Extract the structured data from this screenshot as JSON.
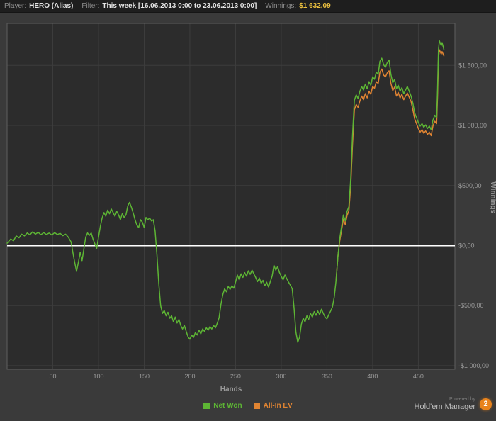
{
  "header": {
    "player_label": "Player:",
    "player_value": "HERO (Alias)",
    "filter_label": "Filter:",
    "filter_value": "This week [16.06.2013 0:00 to 23.06.2013 0:00]",
    "winnings_label": "Winnings:",
    "winnings_value": "$1 632,09",
    "winnings_color": "#eec23f"
  },
  "legend": {
    "items": [
      {
        "label": "Net Won",
        "color": "#5db534"
      },
      {
        "label": "All-In EV",
        "color": "#e08432"
      }
    ]
  },
  "footer": {
    "powered_by": "Powered by",
    "brand": "Hold'em Manager",
    "badge": "2",
    "badge_color": "#e8831c"
  },
  "chart_data": {
    "type": "line",
    "title": "",
    "xlabel": "Hands",
    "ylabel": "Winnings",
    "x_range": [
      0,
      490
    ],
    "y_range": [
      -1030,
      1850
    ],
    "grid": true,
    "legend_position": "bottom",
    "x_ticks": [
      {
        "value": 50,
        "label": "50"
      },
      {
        "value": 100,
        "label": "100"
      },
      {
        "value": 150,
        "label": "150"
      },
      {
        "value": 200,
        "label": "200"
      },
      {
        "value": 250,
        "label": "250"
      },
      {
        "value": 300,
        "label": "300"
      },
      {
        "value": 350,
        "label": "350"
      },
      {
        "value": 400,
        "label": "400"
      },
      {
        "value": 450,
        "label": "450"
      }
    ],
    "y_ticks": [
      {
        "value": 1500,
        "label": "$1 500,00"
      },
      {
        "value": 1000,
        "label": "$1 000,00"
      },
      {
        "value": 500,
        "label": "$500,00"
      },
      {
        "value": 0,
        "label": "$0,00"
      },
      {
        "value": -500,
        "label": "-$500,00"
      },
      {
        "value": -1000,
        "label": "-$1 000,00"
      }
    ],
    "zero_line_value": 0,
    "colors": {
      "plot_bg": "#2c2c2c",
      "grid": "#3d3d3d",
      "border": "#5f5f5f",
      "zero_line": "#ffffff",
      "tick_text": "#9a9a9a"
    },
    "series": [
      {
        "name": "Net Won",
        "color": "#5db534",
        "points": [
          [
            0,
            20
          ],
          [
            4,
            55
          ],
          [
            7,
            40
          ],
          [
            10,
            80
          ],
          [
            13,
            65
          ],
          [
            16,
            95
          ],
          [
            19,
            80
          ],
          [
            22,
            105
          ],
          [
            25,
            90
          ],
          [
            28,
            115
          ],
          [
            31,
            95
          ],
          [
            34,
            110
          ],
          [
            37,
            90
          ],
          [
            40,
            108
          ],
          [
            43,
            92
          ],
          [
            46,
            104
          ],
          [
            49,
            88
          ],
          [
            52,
            108
          ],
          [
            55,
            92
          ],
          [
            58,
            102
          ],
          [
            61,
            82
          ],
          [
            64,
            95
          ],
          [
            67,
            70
          ],
          [
            70,
            30
          ],
          [
            72,
            -60
          ],
          [
            74,
            -140
          ],
          [
            76,
            -215
          ],
          [
            78,
            -140
          ],
          [
            80,
            -55
          ],
          [
            82,
            -125
          ],
          [
            84,
            -30
          ],
          [
            86,
            70
          ],
          [
            88,
            105
          ],
          [
            90,
            85
          ],
          [
            92,
            105
          ],
          [
            94,
            55
          ],
          [
            96,
            15
          ],
          [
            98,
            -25
          ],
          [
            100,
            70
          ],
          [
            102,
            160
          ],
          [
            104,
            230
          ],
          [
            106,
            275
          ],
          [
            108,
            245
          ],
          [
            110,
            295
          ],
          [
            112,
            265
          ],
          [
            114,
            305
          ],
          [
            116,
            275
          ],
          [
            118,
            245
          ],
          [
            120,
            285
          ],
          [
            122,
            255
          ],
          [
            124,
            215
          ],
          [
            126,
            265
          ],
          [
            128,
            235
          ],
          [
            130,
            255
          ],
          [
            132,
            330
          ],
          [
            134,
            360
          ],
          [
            136,
            320
          ],
          [
            138,
            270
          ],
          [
            140,
            215
          ],
          [
            142,
            170
          ],
          [
            144,
            150
          ],
          [
            146,
            215
          ],
          [
            148,
            195
          ],
          [
            150,
            150
          ],
          [
            152,
            235
          ],
          [
            154,
            215
          ],
          [
            156,
            228
          ],
          [
            158,
            205
          ],
          [
            160,
            215
          ],
          [
            162,
            120
          ],
          [
            164,
            -80
          ],
          [
            166,
            -320
          ],
          [
            168,
            -500
          ],
          [
            170,
            -565
          ],
          [
            172,
            -540
          ],
          [
            174,
            -585
          ],
          [
            176,
            -555
          ],
          [
            178,
            -605
          ],
          [
            180,
            -585
          ],
          [
            182,
            -635
          ],
          [
            184,
            -595
          ],
          [
            186,
            -645
          ],
          [
            188,
            -615
          ],
          [
            190,
            -665
          ],
          [
            192,
            -695
          ],
          [
            194,
            -665
          ],
          [
            196,
            -715
          ],
          [
            198,
            -760
          ],
          [
            200,
            -780
          ],
          [
            202,
            -745
          ],
          [
            204,
            -765
          ],
          [
            206,
            -725
          ],
          [
            208,
            -745
          ],
          [
            210,
            -705
          ],
          [
            212,
            -735
          ],
          [
            214,
            -695
          ],
          [
            216,
            -715
          ],
          [
            218,
            -685
          ],
          [
            220,
            -705
          ],
          [
            222,
            -675
          ],
          [
            224,
            -695
          ],
          [
            226,
            -665
          ],
          [
            228,
            -685
          ],
          [
            230,
            -645
          ],
          [
            232,
            -600
          ],
          [
            234,
            -490
          ],
          [
            236,
            -410
          ],
          [
            238,
            -360
          ],
          [
            240,
            -385
          ],
          [
            242,
            -340
          ],
          [
            244,
            -365
          ],
          [
            246,
            -335
          ],
          [
            248,
            -355
          ],
          [
            250,
            -305
          ],
          [
            252,
            -245
          ],
          [
            254,
            -285
          ],
          [
            256,
            -235
          ],
          [
            258,
            -265
          ],
          [
            260,
            -225
          ],
          [
            262,
            -255
          ],
          [
            264,
            -210
          ],
          [
            266,
            -240
          ],
          [
            268,
            -205
          ],
          [
            270,
            -235
          ],
          [
            272,
            -265
          ],
          [
            274,
            -300
          ],
          [
            276,
            -270
          ],
          [
            278,
            -315
          ],
          [
            280,
            -290
          ],
          [
            282,
            -335
          ],
          [
            284,
            -305
          ],
          [
            286,
            -345
          ],
          [
            288,
            -300
          ],
          [
            290,
            -255
          ],
          [
            292,
            -165
          ],
          [
            294,
            -205
          ],
          [
            296,
            -175
          ],
          [
            298,
            -225
          ],
          [
            300,
            -255
          ],
          [
            302,
            -285
          ],
          [
            304,
            -245
          ],
          [
            306,
            -275
          ],
          [
            308,
            -305
          ],
          [
            310,
            -330
          ],
          [
            312,
            -360
          ],
          [
            314,
            -520
          ],
          [
            316,
            -720
          ],
          [
            318,
            -805
          ],
          [
            320,
            -765
          ],
          [
            322,
            -655
          ],
          [
            324,
            -605
          ],
          [
            326,
            -635
          ],
          [
            328,
            -585
          ],
          [
            330,
            -615
          ],
          [
            332,
            -565
          ],
          [
            334,
            -595
          ],
          [
            336,
            -550
          ],
          [
            338,
            -580
          ],
          [
            340,
            -545
          ],
          [
            342,
            -575
          ],
          [
            344,
            -530
          ],
          [
            346,
            -565
          ],
          [
            348,
            -595
          ],
          [
            350,
            -610
          ],
          [
            352,
            -575
          ],
          [
            354,
            -545
          ],
          [
            356,
            -510
          ],
          [
            358,
            -430
          ],
          [
            360,
            -290
          ],
          [
            362,
            -90
          ],
          [
            364,
            60
          ],
          [
            366,
            160
          ],
          [
            368,
            255
          ],
          [
            370,
            205
          ],
          [
            372,
            285
          ],
          [
            374,
            325
          ],
          [
            376,
            560
          ],
          [
            378,
            920
          ],
          [
            380,
            1210
          ],
          [
            382,
            1255
          ],
          [
            384,
            1225
          ],
          [
            386,
            1285
          ],
          [
            388,
            1325
          ],
          [
            390,
            1295
          ],
          [
            392,
            1345
          ],
          [
            394,
            1305
          ],
          [
            396,
            1365
          ],
          [
            398,
            1335
          ],
          [
            400,
            1405
          ],
          [
            402,
            1385
          ],
          [
            404,
            1445
          ],
          [
            406,
            1425
          ],
          [
            408,
            1535
          ],
          [
            410,
            1560
          ],
          [
            412,
            1505
          ],
          [
            414,
            1485
          ],
          [
            416,
            1525
          ],
          [
            418,
            1545
          ],
          [
            420,
            1425
          ],
          [
            422,
            1355
          ],
          [
            424,
            1385
          ],
          [
            426,
            1305
          ],
          [
            428,
            1335
          ],
          [
            430,
            1285
          ],
          [
            432,
            1315
          ],
          [
            434,
            1265
          ],
          [
            436,
            1295
          ],
          [
            438,
            1325
          ],
          [
            440,
            1285
          ],
          [
            442,
            1245
          ],
          [
            444,
            1185
          ],
          [
            446,
            1105
          ],
          [
            448,
            1065
          ],
          [
            450,
            1025
          ],
          [
            452,
            995
          ],
          [
            454,
            1015
          ],
          [
            456,
            985
          ],
          [
            458,
            1005
          ],
          [
            460,
            975
          ],
          [
            462,
            995
          ],
          [
            464,
            965
          ],
          [
            466,
            1045
          ],
          [
            468,
            1085
          ],
          [
            470,
            1065
          ],
          [
            471,
            1300
          ],
          [
            472,
            1630
          ],
          [
            473,
            1705
          ],
          [
            475,
            1665
          ],
          [
            476,
            1690
          ],
          [
            478,
            1632
          ]
        ]
      },
      {
        "name": "All-In EV",
        "color": "#e08432",
        "points": [
          [
            360,
            -290
          ],
          [
            362,
            -90
          ],
          [
            364,
            40
          ],
          [
            366,
            130
          ],
          [
            368,
            220
          ],
          [
            370,
            175
          ],
          [
            372,
            250
          ],
          [
            374,
            290
          ],
          [
            376,
            500
          ],
          [
            378,
            840
          ],
          [
            380,
            1130
          ],
          [
            382,
            1175
          ],
          [
            384,
            1150
          ],
          [
            386,
            1205
          ],
          [
            388,
            1245
          ],
          [
            390,
            1215
          ],
          [
            392,
            1265
          ],
          [
            394,
            1230
          ],
          [
            396,
            1285
          ],
          [
            398,
            1260
          ],
          [
            400,
            1325
          ],
          [
            402,
            1310
          ],
          [
            404,
            1365
          ],
          [
            406,
            1350
          ],
          [
            408,
            1445
          ],
          [
            410,
            1470
          ],
          [
            412,
            1420
          ],
          [
            414,
            1405
          ],
          [
            416,
            1440
          ],
          [
            418,
            1455
          ],
          [
            420,
            1350
          ],
          [
            422,
            1290
          ],
          [
            424,
            1320
          ],
          [
            426,
            1245
          ],
          [
            428,
            1275
          ],
          [
            430,
            1230
          ],
          [
            432,
            1260
          ],
          [
            434,
            1215
          ],
          [
            436,
            1245
          ],
          [
            438,
            1270
          ],
          [
            440,
            1235
          ],
          [
            442,
            1200
          ],
          [
            444,
            1130
          ],
          [
            446,
            1055
          ],
          [
            448,
            1015
          ],
          [
            450,
            975
          ],
          [
            452,
            945
          ],
          [
            454,
            965
          ],
          [
            456,
            935
          ],
          [
            458,
            955
          ],
          [
            460,
            925
          ],
          [
            462,
            945
          ],
          [
            464,
            915
          ],
          [
            466,
            995
          ],
          [
            468,
            1035
          ],
          [
            470,
            1015
          ],
          [
            471,
            1240
          ],
          [
            472,
            1560
          ],
          [
            473,
            1630
          ],
          [
            475,
            1595
          ],
          [
            476,
            1615
          ],
          [
            478,
            1580
          ]
        ]
      }
    ]
  }
}
